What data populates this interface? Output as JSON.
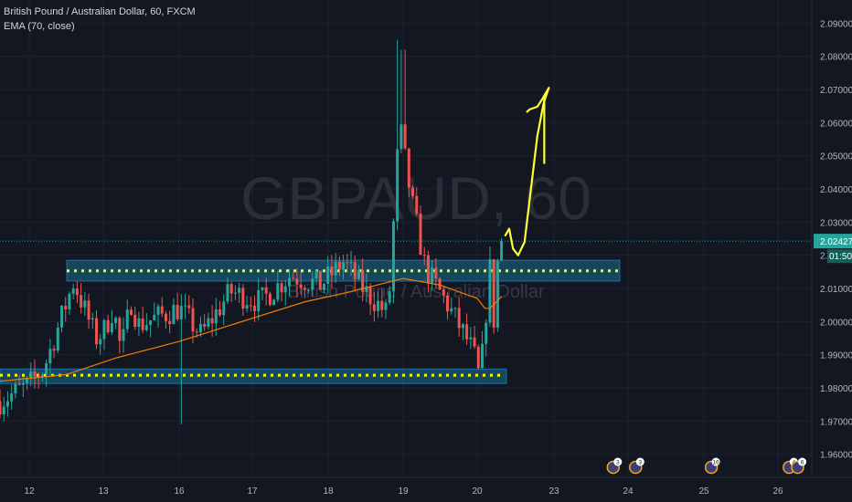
{
  "legend": {
    "title": "British Pound / Australian Dollar, 60, FXCM",
    "indicator": "EMA (70, close)"
  },
  "watermark": {
    "symbol": "GBPAUD, 60",
    "description": "British Pound / Australian Dollar"
  },
  "price_badge": {
    "price": "2.02427",
    "countdown": "01:50"
  },
  "colors": {
    "background": "#131722",
    "up": "#26a69a",
    "down": "#ef5350",
    "ema": "#f57c00",
    "zone_fill": "#1a6f8c",
    "dotted": "#ffff00",
    "drawing": "#ffff33",
    "price_line": "#26a69a"
  },
  "events": [
    {
      "date": "23.8",
      "label": "3"
    },
    {
      "date": "24.1",
      "label": "3"
    },
    {
      "date": "25.1",
      "label": "16"
    },
    {
      "date": "26.2",
      "label": "4"
    },
    {
      "date": "26.35",
      "label": "6"
    }
  ],
  "chart_data": {
    "type": "candlestick",
    "title": "British Pound / Australian Dollar, 60, FXCM",
    "xlabel": "",
    "ylabel": "",
    "x_ticks": [
      "12",
      "13",
      "16",
      "17",
      "18",
      "19",
      "20",
      "23",
      "24",
      "25",
      "26"
    ],
    "y_ticks": [
      "1.96000",
      "1.97000",
      "1.98000",
      "1.99000",
      "2.00000",
      "2.01000",
      "2.02000",
      "2.03000",
      "2.04000",
      "2.05000",
      "2.06000",
      "2.07000",
      "2.08000",
      "2.09000"
    ],
    "ylim": [
      1.953,
      2.097
    ],
    "grid": true,
    "last_price": 2.02427,
    "indicator": "EMA (70, close)",
    "zones": [
      {
        "name": "resistance",
        "low": 2.0122,
        "high": 2.0185,
        "dotted_level": 2.0153
      },
      {
        "name": "support",
        "low": 1.9813,
        "high": 1.9857,
        "dotted_level": 1.9838
      }
    ],
    "anchors": [
      [
        11.8,
        1.976
      ],
      [
        12.2,
        1.986
      ],
      [
        12.6,
        2.012
      ],
      [
        12.9,
        1.995
      ],
      [
        13.4,
        2.004
      ],
      [
        13.7,
        1.991
      ],
      [
        14.1,
        2.006
      ],
      [
        14.4,
        1.999
      ],
      [
        16.0,
        2.004
      ],
      [
        16.3,
        1.996
      ],
      [
        16.7,
        2.009
      ],
      [
        17.1,
        2.006
      ],
      [
        17.5,
        2.014
      ],
      [
        17.9,
        2.011
      ],
      [
        18.2,
        2.018
      ],
      [
        18.5,
        2.009
      ],
      [
        18.8,
        2.002
      ],
      [
        18.95,
        2.06
      ],
      [
        19.1,
        2.038
      ],
      [
        19.3,
        2.016
      ],
      [
        19.6,
        2.005
      ],
      [
        19.9,
        1.993
      ],
      [
        20.1,
        1.981
      ],
      [
        20.3,
        1.999
      ],
      [
        20.5,
        2.016
      ],
      [
        20.6,
        1.995
      ],
      [
        20.8,
        2.018
      ],
      [
        20.95,
        2.0243
      ]
    ],
    "ema_anchors": [
      [
        11.8,
        1.982
      ],
      [
        12.5,
        1.984
      ],
      [
        13.5,
        1.989
      ],
      [
        16.0,
        1.994
      ],
      [
        17.0,
        2.001
      ],
      [
        17.7,
        2.006
      ],
      [
        18.3,
        2.009
      ],
      [
        19.0,
        2.013
      ],
      [
        19.5,
        2.011
      ],
      [
        20.0,
        2.007
      ],
      [
        20.3,
        2.004
      ],
      [
        20.5,
        2.004
      ],
      [
        20.95,
        2.0075
      ]
    ],
    "drawing_path": [
      [
        21.1,
        2.026
      ],
      [
        21.25,
        2.028
      ],
      [
        21.4,
        2.022
      ],
      [
        21.6,
        2.02
      ],
      [
        21.85,
        2.024
      ],
      [
        22.1,
        2.04
      ],
      [
        22.35,
        2.056
      ],
      [
        22.6,
        2.066
      ],
      [
        22.8,
        2.0705
      ],
      [
        22.55,
        2.0672
      ],
      [
        22.35,
        2.0648
      ],
      [
        22.05,
        2.064
      ],
      [
        21.95,
        2.0633
      ]
    ],
    "drawing_stroke": [
      [
        22.62,
        2.0478
      ],
      [
        22.62,
        2.068
      ]
    ]
  }
}
